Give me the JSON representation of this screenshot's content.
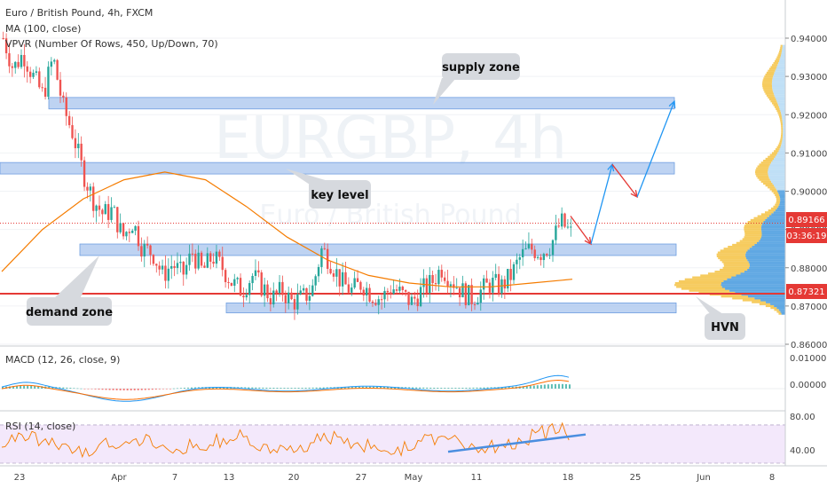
{
  "header": {
    "title": "Euro / British Pound, 4h, FXCM",
    "ma_label": "MA (100, close)",
    "vpvr_label": "VPVR (Number Of Rows, 450, Up/Down, 70)"
  },
  "watermark": {
    "symbol": "EURGBP, 4h",
    "name": "Euro / British Pound"
  },
  "annotations": {
    "supply": "supply zone",
    "key": "key level",
    "demand": "demand zone",
    "hvn": "HVN"
  },
  "price_tags": {
    "last": "0.89166",
    "countdown": "03:36:19",
    "hvn_level": "0.87321"
  },
  "macd": {
    "label": "MACD (12, 26, close, 9)",
    "ticks": [
      "0.01000",
      "0.00000"
    ]
  },
  "rsi": {
    "label": "RSI (14, close)",
    "ticks": [
      "80.00",
      "40.00"
    ]
  },
  "x_axis": {
    "labels": [
      "23",
      "Apr",
      "7",
      "13",
      "20",
      "27",
      "May",
      "11",
      "18",
      "25",
      "Jun",
      "8"
    ]
  },
  "colors": {
    "zone": "#a8c4ee",
    "bull": "#26a69a",
    "bear": "#ef5350",
    "ma": "#f57c00",
    "hline": "#e53935",
    "arrow_up": "#2196f3",
    "arrow_down": "#e53935",
    "vpvr_up": "#4f9fe0",
    "vpvr_down": "#f5c242",
    "rsi_trend": "#4a8ee0"
  },
  "chart_data": {
    "type": "candlestick",
    "title": "Euro / British Pound, 4h, FXCM",
    "y_axis": {
      "ticks": [
        "0.94000",
        "0.93000",
        "0.92000",
        "0.91000",
        "0.90000",
        "0.89000",
        "0.88000",
        "0.87000",
        "0.86000"
      ],
      "range": [
        0.86,
        0.945
      ]
    },
    "x_axis_labels": [
      "23",
      "Apr",
      "7",
      "13",
      "20",
      "27",
      "May",
      "11",
      "18",
      "25",
      "Jun",
      "8"
    ],
    "price_path": [
      0.94,
      0.932,
      0.936,
      0.93,
      0.925,
      0.935,
      0.922,
      0.915,
      0.905,
      0.898,
      0.894,
      0.895,
      0.888,
      0.892,
      0.885,
      0.884,
      0.878,
      0.881,
      0.878,
      0.884,
      0.879,
      0.883,
      0.88,
      0.876,
      0.874,
      0.878,
      0.875,
      0.872,
      0.874,
      0.871,
      0.872,
      0.874,
      0.885,
      0.881,
      0.876,
      0.874,
      0.876,
      0.873,
      0.872,
      0.875,
      0.873,
      0.871,
      0.874,
      0.876,
      0.88,
      0.877,
      0.874,
      0.872,
      0.874,
      0.876,
      0.875,
      0.878,
      0.883,
      0.885,
      0.884,
      0.886,
      0.892,
      0.889
    ],
    "ma_100": [
      0.879,
      0.89,
      0.898,
      0.903,
      0.905,
      0.903,
      0.896,
      0.888,
      0.882,
      0.878,
      0.876,
      0.875,
      0.875,
      0.876,
      0.877
    ],
    "zones": [
      {
        "name": "supply zone",
        "from": 0.9215,
        "to": 0.9245
      },
      {
        "name": "key level",
        "from": 0.9045,
        "to": 0.9075
      },
      {
        "name": "demand zone (upper)",
        "from": 0.8832,
        "to": 0.8862
      },
      {
        "name": "demand zone (lower)",
        "from": 0.8682,
        "to": 0.8708
      }
    ],
    "horizontal_line": 0.87321,
    "last_price": 0.89166,
    "projection": [
      {
        "direction": "down",
        "from": 0.8935,
        "to": 0.8862
      },
      {
        "direction": "up",
        "from": 0.8862,
        "to": 0.907
      },
      {
        "direction": "down",
        "from": 0.907,
        "to": 0.8985
      },
      {
        "direction": "up",
        "from": 0.8985,
        "to": 0.9235
      }
    ],
    "macd": {
      "ticks": [
        0.01,
        0.0
      ],
      "range": [
        -0.006,
        0.012
      ]
    },
    "rsi": {
      "ticks": [
        80,
        40
      ],
      "range": [
        30,
        82
      ],
      "band": [
        30,
        70
      ]
    }
  }
}
